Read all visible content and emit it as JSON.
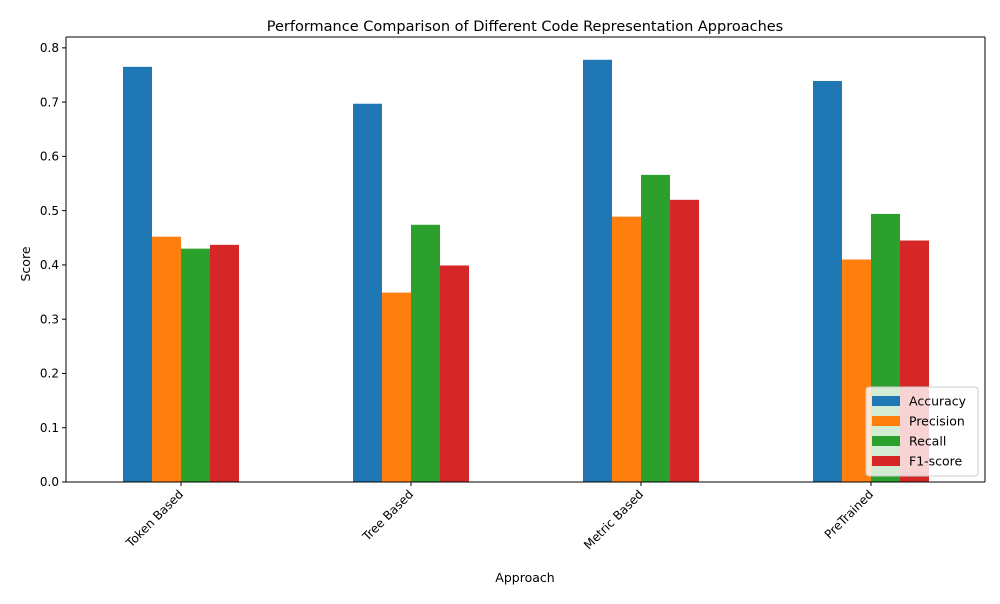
{
  "chart_data": {
    "type": "bar",
    "title": "Performance Comparison of Different Code Representation Approaches",
    "xlabel": "Approach",
    "ylabel": "Score",
    "categories": [
      "Token Based",
      "Tree Based",
      "Metric Based",
      "PreTrained"
    ],
    "series": [
      {
        "name": "Accuracy",
        "color": "#1f77b4",
        "values": [
          0.765,
          0.697,
          0.778,
          0.739
        ]
      },
      {
        "name": "Precision",
        "color": "#ff7f0e",
        "values": [
          0.452,
          0.349,
          0.489,
          0.41
        ]
      },
      {
        "name": "Recall",
        "color": "#2ca02c",
        "values": [
          0.43,
          0.474,
          0.566,
          0.494
        ]
      },
      {
        "name": "F1-score",
        "color": "#d62728",
        "values": [
          0.437,
          0.399,
          0.52,
          0.445
        ]
      }
    ],
    "ylim": [
      0,
      0.82
    ],
    "yticks": [
      "0.0",
      "0.1",
      "0.2",
      "0.3",
      "0.4",
      "0.5",
      "0.6",
      "0.7",
      "0.8"
    ],
    "grid": false,
    "legend_position": "lower-right"
  }
}
